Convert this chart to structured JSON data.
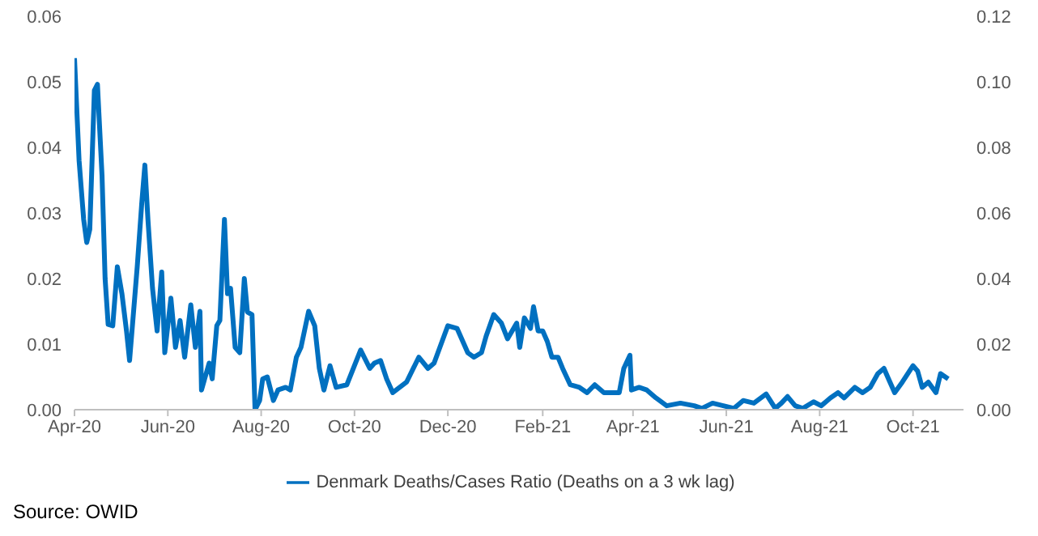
{
  "chart_data": {
    "type": "line",
    "x": [
      "2020-04-01",
      "2020-04-04",
      "2020-04-07",
      "2020-04-09",
      "2020-04-11",
      "2020-04-14",
      "2020-04-16",
      "2020-04-19",
      "2020-04-21",
      "2020-04-23",
      "2020-04-26",
      "2020-04-29",
      "2020-05-02",
      "2020-05-05",
      "2020-05-07",
      "2020-05-12",
      "2020-05-15",
      "2020-05-17",
      "2020-05-19",
      "2020-05-22",
      "2020-05-25",
      "2020-05-28",
      "2020-05-30",
      "2020-06-03",
      "2020-06-06",
      "2020-06-09",
      "2020-06-12",
      "2020-06-16",
      "2020-06-19",
      "2020-06-22",
      "2020-06-23",
      "2020-06-28",
      "2020-06-30",
      "2020-07-03",
      "2020-07-05",
      "2020-07-08",
      "2020-07-10",
      "2020-07-12",
      "2020-07-15",
      "2020-07-18",
      "2020-07-21",
      "2020-07-23",
      "2020-07-26",
      "2020-07-28",
      "2020-07-31",
      "2020-08-02",
      "2020-08-05",
      "2020-08-09",
      "2020-08-12",
      "2020-08-17",
      "2020-08-20",
      "2020-08-24",
      "2020-08-27",
      "2020-09-01",
      "2020-09-05",
      "2020-09-08",
      "2020-09-11",
      "2020-09-15",
      "2020-09-19",
      "2020-09-26",
      "2020-10-05",
      "2020-10-11",
      "2020-10-14",
      "2020-10-18",
      "2020-10-22",
      "2020-10-26",
      "2020-11-04",
      "2020-11-12",
      "2020-11-18",
      "2020-11-22",
      "2020-12-01",
      "2020-12-07",
      "2020-12-14",
      "2020-12-18",
      "2020-12-23",
      "2020-12-26",
      "2020-12-31",
      "2021-01-05",
      "2021-01-09",
      "2021-01-15",
      "2021-01-17",
      "2021-01-20",
      "2021-01-24",
      "2021-01-26",
      "2021-01-29",
      "2021-02-01",
      "2021-02-04",
      "2021-02-07",
      "2021-02-11",
      "2021-02-14",
      "2021-02-19",
      "2021-02-25",
      "2021-03-02",
      "2021-03-07",
      "2021-03-13",
      "2021-03-18",
      "2021-03-23",
      "2021-03-26",
      "2021-03-30",
      "2021-03-31",
      "2021-04-05",
      "2021-04-10",
      "2021-04-16",
      "2021-04-23",
      "2021-05-02",
      "2021-05-11",
      "2021-05-16",
      "2021-05-23",
      "2021-05-30",
      "2021-06-06",
      "2021-06-12",
      "2021-06-19",
      "2021-06-27",
      "2021-07-03",
      "2021-07-07",
      "2021-07-11",
      "2021-07-16",
      "2021-07-21",
      "2021-07-28",
      "2021-08-02",
      "2021-08-08",
      "2021-08-13",
      "2021-08-17",
      "2021-08-24",
      "2021-08-29",
      "2021-09-03",
      "2021-09-08",
      "2021-09-12",
      "2021-09-15",
      "2021-09-19",
      "2021-09-24",
      "2021-10-01",
      "2021-10-04",
      "2021-10-07",
      "2021-10-11",
      "2021-10-16",
      "2021-10-19",
      "2021-10-24"
    ],
    "series": [
      {
        "name": "Denmark Deaths/Cases Ratio (Deaths on a 3 wk lag)",
        "color": "#0070c0",
        "values": [
          0.0536,
          0.038,
          0.029,
          0.0255,
          0.0275,
          0.0487,
          0.0496,
          0.0357,
          0.02,
          0.013,
          0.0128,
          0.0218,
          0.0177,
          0.012,
          0.0075,
          0.0218,
          0.0316,
          0.0373,
          0.029,
          0.0185,
          0.012,
          0.021,
          0.0087,
          0.017,
          0.0095,
          0.0136,
          0.008,
          0.016,
          0.0095,
          0.015,
          0.003,
          0.0071,
          0.0047,
          0.0128,
          0.0136,
          0.029,
          0.0177,
          0.0185,
          0.0095,
          0.0087,
          0.02,
          0.0149,
          0.0145,
          0.0,
          0.0014,
          0.0047,
          0.005,
          0.0014,
          0.003,
          0.0034,
          0.003,
          0.008,
          0.0095,
          0.015,
          0.0128,
          0.0063,
          0.003,
          0.0067,
          0.0034,
          0.0038,
          0.0091,
          0.0063,
          0.0071,
          0.0075,
          0.0047,
          0.0026,
          0.0042,
          0.008,
          0.0063,
          0.0071,
          0.0128,
          0.0124,
          0.0087,
          0.008,
          0.0087,
          0.0112,
          0.0145,
          0.0132,
          0.0108,
          0.0132,
          0.0095,
          0.014,
          0.0124,
          0.0157,
          0.012,
          0.012,
          0.0104,
          0.008,
          0.008,
          0.0063,
          0.0038,
          0.0034,
          0.0026,
          0.0038,
          0.0026,
          0.0026,
          0.0026,
          0.0063,
          0.0083,
          0.003,
          0.0034,
          0.003,
          0.0018,
          0.0006,
          0.001,
          0.0006,
          0.0002,
          0.001,
          0.0006,
          0.0002,
          0.0014,
          0.001,
          0.0024,
          0.0002,
          0.001,
          0.002,
          0.0006,
          0.0002,
          0.0012,
          0.0006,
          0.0018,
          0.0026,
          0.0018,
          0.0034,
          0.0026,
          0.0034,
          0.0055,
          0.0063,
          0.0047,
          0.0026,
          0.0042,
          0.0067,
          0.0059,
          0.0034,
          0.0042,
          0.0026,
          0.0055,
          0.0047
        ]
      }
    ],
    "xlim": [
      "2020-04-01",
      "2021-11-03"
    ],
    "xticks": [
      {
        "value": "2020-04-01",
        "label": "Apr-20"
      },
      {
        "value": "2020-06-01",
        "label": "Jun-20"
      },
      {
        "value": "2020-08-01",
        "label": "Aug-20"
      },
      {
        "value": "2020-10-01",
        "label": "Oct-20"
      },
      {
        "value": "2020-12-01",
        "label": "Dec-20"
      },
      {
        "value": "2021-02-01",
        "label": "Feb-21"
      },
      {
        "value": "2021-04-01",
        "label": "Apr-21"
      },
      {
        "value": "2021-06-01",
        "label": "Jun-21"
      },
      {
        "value": "2021-08-01",
        "label": "Aug-21"
      },
      {
        "value": "2021-10-01",
        "label": "Oct-21"
      }
    ],
    "ylim": [
      0,
      0.06
    ],
    "yticks": [
      {
        "value": 0,
        "label": "0.00"
      },
      {
        "value": 0.01,
        "label": "0.01"
      },
      {
        "value": 0.02,
        "label": "0.02"
      },
      {
        "value": 0.03,
        "label": "0.03"
      },
      {
        "value": 0.04,
        "label": "0.04"
      },
      {
        "value": 0.05,
        "label": "0.05"
      },
      {
        "value": 0.06,
        "label": "0.06"
      }
    ],
    "y2lim": [
      0,
      0.12
    ],
    "y2ticks": [
      {
        "value": 0,
        "label": "0.00"
      },
      {
        "value": 0.02,
        "label": "0.02"
      },
      {
        "value": 0.04,
        "label": "0.04"
      },
      {
        "value": 0.06,
        "label": "0.06"
      },
      {
        "value": 0.08,
        "label": "0.08"
      },
      {
        "value": 0.1,
        "label": "0.10"
      },
      {
        "value": 0.12,
        "label": "0.12"
      }
    ],
    "legend": "bottom",
    "grid": false,
    "marker": "none",
    "line_style": "solid",
    "annotations": [
      "Source: OWID"
    ]
  }
}
